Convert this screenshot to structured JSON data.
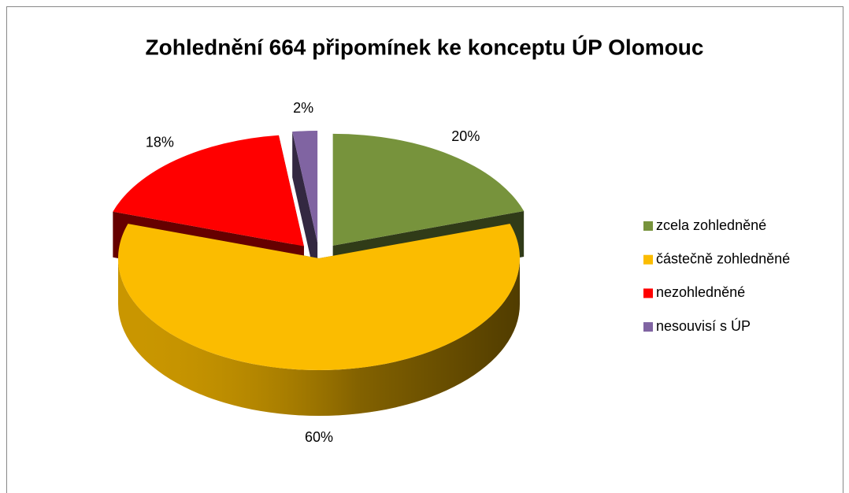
{
  "chart_data": {
    "type": "pie3d",
    "title": "Zohlednění 664 připomínek ke konceptu ÚP Olomouc",
    "categories": [
      "zcela zohledněné",
      "částečně zohledněné",
      "nezohledněné",
      "nesouvisí s ÚP"
    ],
    "values": [
      20,
      60,
      18,
      2
    ],
    "value_labels": [
      "20%",
      "60%",
      "18%",
      "2%"
    ],
    "colors": [
      "#77933c",
      "#fbbc00",
      "#ff0000",
      "#8064a2"
    ],
    "legend": "right"
  }
}
